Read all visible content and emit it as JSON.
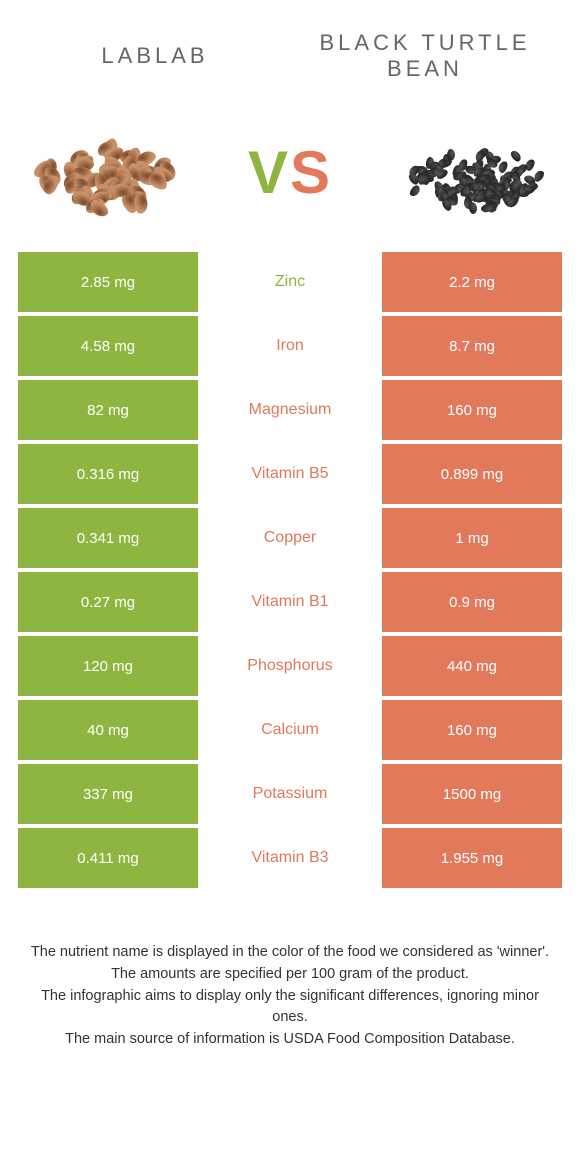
{
  "colors": {
    "left": "#8fb541",
    "right": "#e1795a",
    "bg": "#ffffff",
    "title": "#666666",
    "footer": "#333333"
  },
  "header": {
    "left_title": "LABLAB",
    "right_title": "BLACK TURTLE BEAN"
  },
  "vs": {
    "v": "V",
    "s": "S"
  },
  "rows": [
    {
      "left": "2.85 mg",
      "label": "Zinc",
      "right": "2.2 mg",
      "winner": "left"
    },
    {
      "left": "4.58 mg",
      "label": "Iron",
      "right": "8.7 mg",
      "winner": "right"
    },
    {
      "left": "82 mg",
      "label": "Magnesium",
      "right": "160 mg",
      "winner": "right"
    },
    {
      "left": "0.316 mg",
      "label": "Vitamin B5",
      "right": "0.899 mg",
      "winner": "right"
    },
    {
      "left": "0.341 mg",
      "label": "Copper",
      "right": "1 mg",
      "winner": "right"
    },
    {
      "left": "0.27 mg",
      "label": "Vitamin B1",
      "right": "0.9 mg",
      "winner": "right"
    },
    {
      "left": "120 mg",
      "label": "Phosphorus",
      "right": "440 mg",
      "winner": "right"
    },
    {
      "left": "40 mg",
      "label": "Calcium",
      "right": "160 mg",
      "winner": "right"
    },
    {
      "left": "337 mg",
      "label": "Potassium",
      "right": "1500 mg",
      "winner": "right"
    },
    {
      "left": "0.411 mg",
      "label": "Vitamin B3",
      "right": "1.955 mg",
      "winner": "right"
    }
  ],
  "footer": {
    "line1": "The nutrient name is displayed in the color of the food we considered as 'winner'.",
    "line2": "The amounts are specified per 100 gram of the product.",
    "line3": "The infographic aims to display only the significant differences, ignoring minor ones.",
    "line4": "The main source of information is USDA Food Composition Database."
  },
  "food_images": {
    "left_bean_color": "#c89068",
    "left_bean_spot": "#7a4a2a",
    "right_bean_color": "#2a2a2a",
    "right_bean_highlight": "#555555"
  }
}
